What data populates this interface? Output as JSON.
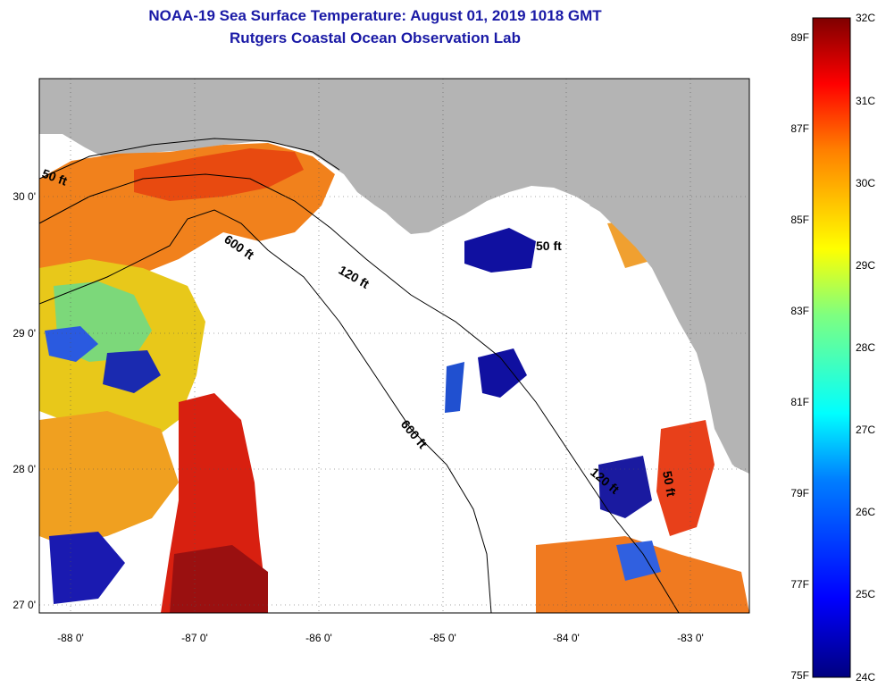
{
  "title": {
    "line1": "NOAA-19 Sea Surface Temperature:  August 01, 2019 1018 GMT",
    "line2": "Rutgers Coastal Ocean Observation Lab"
  },
  "map": {
    "x_ticks": [
      "-88 0'",
      "-87 0'",
      "-86 0'",
      "-85 0'",
      "-84 0'",
      "-83 0'"
    ],
    "y_ticks": [
      "30 0'",
      "29 0'",
      "28 0'",
      "27 0'"
    ],
    "lon_range": [
      -88.3,
      -82.5
    ],
    "lat_range": [
      26.95,
      30.85
    ],
    "land_color": "#b4b4b4",
    "cloud_color": "#ffffff",
    "contour_labels": [
      "50 ft",
      "600 ft",
      "120 ft",
      "600 ft",
      "50 ft",
      "120 ft",
      "50 ft"
    ]
  },
  "colorbar": {
    "celsius": [
      "32C",
      "31C",
      "30C",
      "29C",
      "28C",
      "27C",
      "26C",
      "25C",
      "24C"
    ],
    "fahrenheit": [
      "89F",
      "87F",
      "85F",
      "83F",
      "81F",
      "79F",
      "77F",
      "75F"
    ],
    "range_c": [
      24,
      32
    ],
    "colors": [
      "#00007f",
      "#0000ff",
      "#007fff",
      "#00ffff",
      "#7fff7f",
      "#ffff00",
      "#ff7f00",
      "#ff0000",
      "#7f0000"
    ]
  }
}
